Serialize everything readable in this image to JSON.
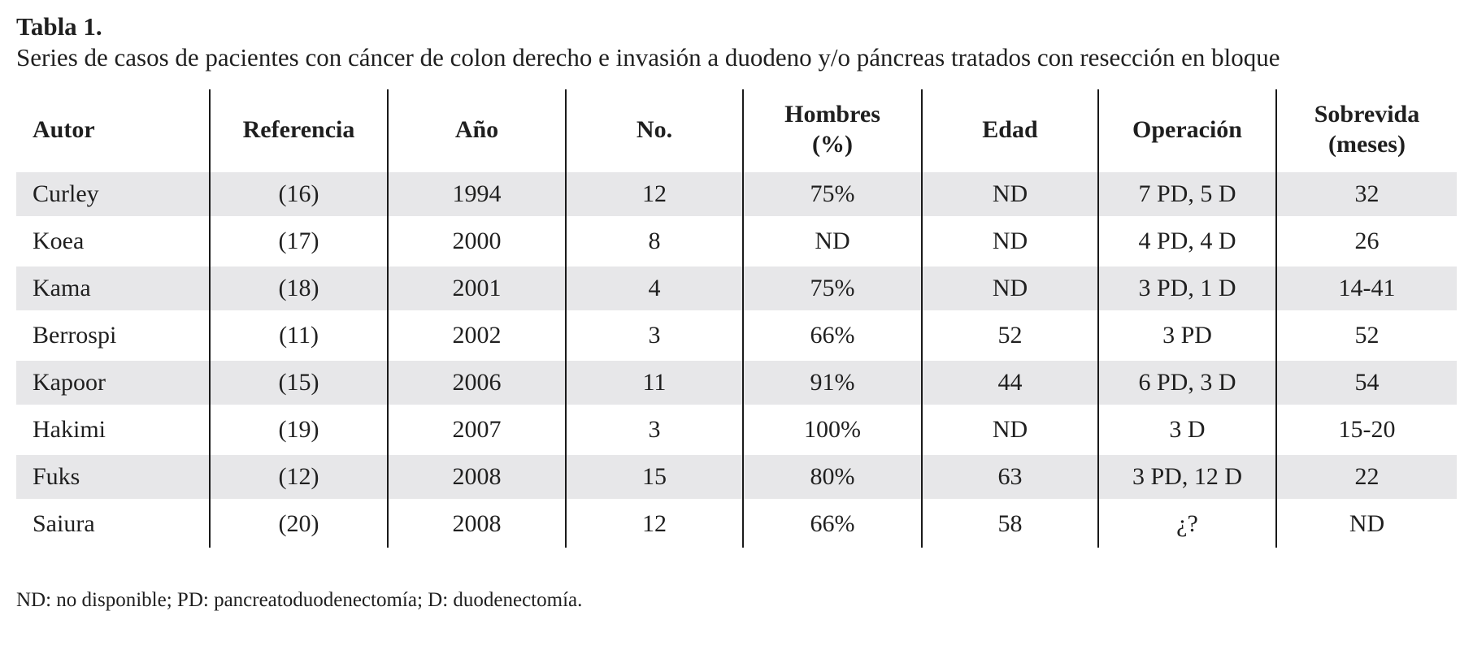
{
  "document": {
    "label": "Tabla 1.",
    "caption": "Series de casos de pacientes con cáncer de colon derecho e invasión a duodeno y/o páncreas tratados con resección en bloque",
    "footnote": "ND: no disponible; PD: pancreatoduodenectomía; D: duodenectomía."
  },
  "table": {
    "columns": [
      [
        "Autor"
      ],
      [
        "Referencia"
      ],
      [
        "Año"
      ],
      [
        "No."
      ],
      [
        "Hombres",
        "(%)"
      ],
      [
        "Edad"
      ],
      [
        "Operación"
      ],
      [
        "Sobrevida",
        "(meses)"
      ]
    ],
    "rows": [
      [
        "Curley",
        "(16)",
        "1994",
        "12",
        "75%",
        "ND",
        "7 PD, 5 D",
        "32"
      ],
      [
        "Koea",
        "(17)",
        "2000",
        "8",
        "ND",
        "ND",
        "4 PD, 4 D",
        "26"
      ],
      [
        "Kama",
        "(18)",
        "2001",
        "4",
        "75%",
        "ND",
        "3 PD, 1 D",
        "14-41"
      ],
      [
        "Berrospi",
        "(11)",
        "2002",
        "3",
        "66%",
        "52",
        "3 PD",
        "52"
      ],
      [
        "Kapoor",
        "(15)",
        "2006",
        "11",
        "91%",
        "44",
        "6 PD, 3 D",
        "54"
      ],
      [
        "Hakimi",
        "(19)",
        "2007",
        "3",
        "100%",
        "ND",
        "3 D",
        "15-20"
      ],
      [
        "Fuks",
        "(12)",
        "2008",
        "15",
        "80%",
        "63",
        "3 PD, 12 D",
        "22"
      ],
      [
        "Saiura",
        "(20)",
        "2008",
        "12",
        "66%",
        "58",
        "¿?",
        "ND"
      ]
    ],
    "colors": {
      "stripe": "#e7e7e9",
      "rule": "#1a1a1a",
      "text": "#1f1f1f"
    }
  }
}
